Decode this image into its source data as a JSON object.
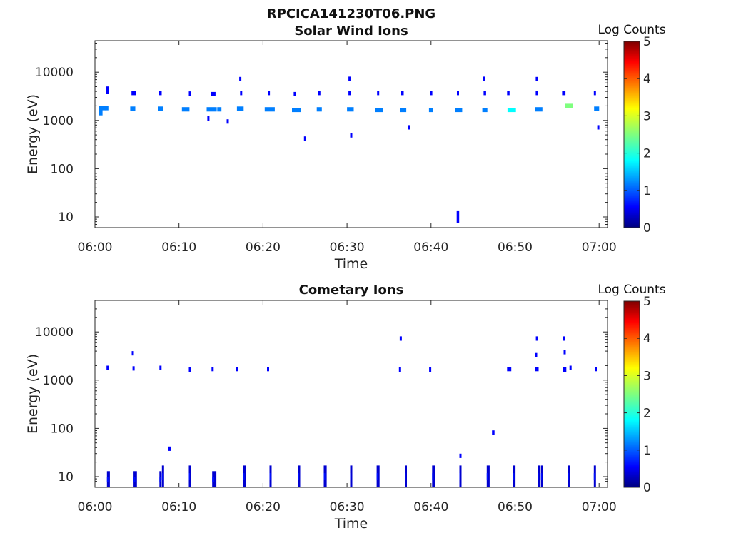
{
  "figure": {
    "title": "RPCICA141230T06.PNG"
  },
  "colorscale": [
    "#00007f",
    "#0000ff",
    "#007fff",
    "#00ffff",
    "#7fff7f",
    "#ffff00",
    "#ff7f00",
    "#ff0000",
    "#7f0000"
  ],
  "chart_data": [
    {
      "type": "heatmap",
      "title": "Solar Wind Ions",
      "xlabel": "Time",
      "ylabel": "Energy (eV)",
      "x_ticks": [
        "06:00",
        "06:10",
        "06:20",
        "06:30",
        "06:40",
        "06:50",
        "07:00"
      ],
      "x_range_minutes": [
        0,
        61
      ],
      "y_scale": "log",
      "y_range_eV": [
        6,
        45000
      ],
      "y_ticks": [
        {
          "value": 10,
          "label": "10"
        },
        {
          "value": 100,
          "label": "100"
        },
        {
          "value": 1000,
          "label": "1000"
        },
        {
          "value": 10000,
          "label": "10000"
        }
      ],
      "colorbar": {
        "label": "Log Counts",
        "range": [
          0,
          5
        ],
        "ticks": [
          "0",
          "1",
          "2",
          "3",
          "4",
          "5"
        ]
      },
      "points": [
        {
          "t": 0.7,
          "e": 1600,
          "w": 0.4,
          "v": 1.0,
          "h": 0.1
        },
        {
          "t": 1.0,
          "e": 1800,
          "w": 0.5,
          "v": 1.2
        },
        {
          "t": 1.4,
          "e": 1800,
          "w": 0.4,
          "v": 1.0
        },
        {
          "t": 1.5,
          "e": 4200,
          "w": 0.3,
          "v": 0.9,
          "h": 0.08
        },
        {
          "t": 4.5,
          "e": 1750,
          "w": 0.6,
          "v": 1.3
        },
        {
          "t": 4.6,
          "e": 3700,
          "w": 0.5,
          "v": 0.8
        },
        {
          "t": 7.8,
          "e": 1750,
          "w": 0.6,
          "v": 1.2
        },
        {
          "t": 7.8,
          "e": 3700,
          "w": 0.3,
          "v": 0.8
        },
        {
          "t": 10.8,
          "e": 1700,
          "w": 0.9,
          "v": 1.1
        },
        {
          "t": 11.3,
          "e": 3600,
          "w": 0.2,
          "v": 0.8
        },
        {
          "t": 13.5,
          "e": 1100,
          "w": 0.2,
          "v": 0.8
        },
        {
          "t": 13.9,
          "e": 1700,
          "w": 1.2,
          "v": 1.5
        },
        {
          "t": 14.1,
          "e": 3500,
          "w": 0.5,
          "v": 0.9
        },
        {
          "t": 14.8,
          "e": 1700,
          "w": 0.5,
          "v": 1.0
        },
        {
          "t": 15.8,
          "e": 950,
          "w": 0.2,
          "v": 0.7
        },
        {
          "t": 17.3,
          "e": 7200,
          "w": 0.2,
          "v": 0.8
        },
        {
          "t": 17.4,
          "e": 3700,
          "w": 0.2,
          "v": 0.8
        },
        {
          "t": 17.3,
          "e": 1750,
          "w": 0.8,
          "v": 1.2
        },
        {
          "t": 20.7,
          "e": 3700,
          "w": 0.2,
          "v": 0.8
        },
        {
          "t": 20.8,
          "e": 1700,
          "w": 1.2,
          "v": 1.4
        },
        {
          "t": 23.8,
          "e": 3500,
          "w": 0.3,
          "v": 0.8
        },
        {
          "t": 24.0,
          "e": 1650,
          "w": 1.1,
          "v": 1.5
        },
        {
          "t": 25.0,
          "e": 420,
          "w": 0.2,
          "v": 0.7
        },
        {
          "t": 26.7,
          "e": 3700,
          "w": 0.2,
          "v": 0.8
        },
        {
          "t": 26.7,
          "e": 1700,
          "w": 0.6,
          "v": 1.1
        },
        {
          "t": 30.3,
          "e": 7300,
          "w": 0.2,
          "v": 0.8
        },
        {
          "t": 30.3,
          "e": 3700,
          "w": 0.2,
          "v": 0.8
        },
        {
          "t": 30.4,
          "e": 1700,
          "w": 0.8,
          "v": 1.5
        },
        {
          "t": 30.5,
          "e": 490,
          "w": 0.2,
          "v": 0.7
        },
        {
          "t": 33.7,
          "e": 3700,
          "w": 0.2,
          "v": 0.8
        },
        {
          "t": 33.8,
          "e": 1650,
          "w": 0.9,
          "v": 1.4
        },
        {
          "t": 36.6,
          "e": 3700,
          "w": 0.3,
          "v": 0.9
        },
        {
          "t": 36.7,
          "e": 1650,
          "w": 0.7,
          "v": 1.1
        },
        {
          "t": 37.4,
          "e": 720,
          "w": 0.2,
          "v": 0.7
        },
        {
          "t": 40.0,
          "e": 3700,
          "w": 0.3,
          "v": 0.9
        },
        {
          "t": 40.0,
          "e": 1650,
          "w": 0.5,
          "v": 1.2
        },
        {
          "t": 43.2,
          "e": 3700,
          "w": 0.2,
          "v": 0.8
        },
        {
          "t": 43.3,
          "e": 1650,
          "w": 0.8,
          "v": 1.5
        },
        {
          "t": 43.2,
          "e": 10,
          "w": 0.3,
          "v": 0.8,
          "h": 0.12
        },
        {
          "t": 46.3,
          "e": 7300,
          "w": 0.2,
          "v": 0.8
        },
        {
          "t": 46.4,
          "e": 3700,
          "w": 0.3,
          "v": 0.8
        },
        {
          "t": 46.4,
          "e": 1650,
          "w": 0.6,
          "v": 1.4
        },
        {
          "t": 49.2,
          "e": 3700,
          "w": 0.3,
          "v": 0.8
        },
        {
          "t": 49.6,
          "e": 1650,
          "w": 1.0,
          "v": 1.7
        },
        {
          "t": 52.6,
          "e": 7200,
          "w": 0.3,
          "v": 0.8
        },
        {
          "t": 52.6,
          "e": 3700,
          "w": 0.3,
          "v": 0.8
        },
        {
          "t": 52.8,
          "e": 1700,
          "w": 0.9,
          "v": 1.3
        },
        {
          "t": 55.8,
          "e": 3700,
          "w": 0.4,
          "v": 0.9
        },
        {
          "t": 56.4,
          "e": 2000,
          "w": 0.9,
          "v": 2.2
        },
        {
          "t": 59.5,
          "e": 3700,
          "w": 0.2,
          "v": 0.8
        },
        {
          "t": 59.7,
          "e": 1750,
          "w": 0.6,
          "v": 1.4
        },
        {
          "t": 59.9,
          "e": 720,
          "w": 0.2,
          "v": 0.7
        }
      ]
    },
    {
      "type": "heatmap",
      "title": "Cometary Ions",
      "xlabel": "Time",
      "ylabel": "Energy (eV)",
      "x_ticks": [
        "06:00",
        "06:10",
        "06:20",
        "06:30",
        "06:40",
        "06:50",
        "07:00"
      ],
      "x_range_minutes": [
        0,
        61
      ],
      "y_scale": "log",
      "y_range_eV": [
        6,
        45000
      ],
      "y_ticks": [
        {
          "value": 10,
          "label": "10"
        },
        {
          "value": 100,
          "label": "100"
        },
        {
          "value": 1000,
          "label": "1000"
        },
        {
          "value": 10000,
          "label": "10000"
        }
      ],
      "colorbar": {
        "label": "Log Counts",
        "range": [
          0,
          5
        ],
        "ticks": [
          "0",
          "1",
          "2",
          "3",
          "4",
          "5"
        ]
      },
      "points": [
        {
          "t": 1.5,
          "e": 1800,
          "w": 0.2,
          "v": 0.8
        },
        {
          "t": 4.5,
          "e": 3600,
          "w": 0.2,
          "v": 0.8
        },
        {
          "t": 4.6,
          "e": 1750,
          "w": 0.2,
          "v": 0.8
        },
        {
          "t": 7.8,
          "e": 1800,
          "w": 0.2,
          "v": 0.8
        },
        {
          "t": 8.9,
          "e": 38,
          "w": 0.3,
          "v": 0.8
        },
        {
          "t": 11.3,
          "e": 1650,
          "w": 0.2,
          "v": 0.8
        },
        {
          "t": 14.0,
          "e": 1700,
          "w": 0.2,
          "v": 0.8
        },
        {
          "t": 16.9,
          "e": 1700,
          "w": 0.2,
          "v": 0.8
        },
        {
          "t": 20.6,
          "e": 1700,
          "w": 0.2,
          "v": 0.8
        },
        {
          "t": 36.4,
          "e": 7300,
          "w": 0.2,
          "v": 0.8
        },
        {
          "t": 36.3,
          "e": 1650,
          "w": 0.2,
          "v": 0.8
        },
        {
          "t": 39.9,
          "e": 1650,
          "w": 0.2,
          "v": 0.8
        },
        {
          "t": 43.5,
          "e": 27,
          "w": 0.2,
          "v": 0.8
        },
        {
          "t": 47.4,
          "e": 82,
          "w": 0.3,
          "v": 0.8
        },
        {
          "t": 49.3,
          "e": 1700,
          "w": 0.5,
          "v": 0.8
        },
        {
          "t": 52.6,
          "e": 7300,
          "w": 0.2,
          "v": 0.8
        },
        {
          "t": 52.5,
          "e": 3300,
          "w": 0.2,
          "v": 0.8
        },
        {
          "t": 52.6,
          "e": 1700,
          "w": 0.4,
          "v": 0.8
        },
        {
          "t": 55.8,
          "e": 7300,
          "w": 0.2,
          "v": 0.8
        },
        {
          "t": 55.9,
          "e": 3800,
          "w": 0.2,
          "v": 0.8
        },
        {
          "t": 55.9,
          "e": 1650,
          "w": 0.4,
          "v": 0.9
        },
        {
          "t": 56.6,
          "e": 1800,
          "w": 0.2,
          "v": 0.8
        },
        {
          "t": 59.6,
          "e": 1700,
          "w": 0.2,
          "v": 0.8
        }
      ],
      "bars": [
        {
          "t": 1.6,
          "w": 0.35,
          "top": 13
        },
        {
          "t": 4.8,
          "w": 0.4,
          "top": 13
        },
        {
          "t": 7.8,
          "w": 0.2,
          "top": 13
        },
        {
          "t": 8.1,
          "w": 0.2,
          "top": 17
        },
        {
          "t": 11.3,
          "w": 0.25,
          "top": 17
        },
        {
          "t": 14.2,
          "w": 0.5,
          "top": 13
        },
        {
          "t": 17.8,
          "w": 0.35,
          "top": 17
        },
        {
          "t": 20.9,
          "w": 0.25,
          "top": 17
        },
        {
          "t": 24.3,
          "w": 0.25,
          "top": 17
        },
        {
          "t": 27.4,
          "w": 0.35,
          "top": 17
        },
        {
          "t": 30.5,
          "w": 0.25,
          "top": 17
        },
        {
          "t": 33.7,
          "w": 0.35,
          "top": 17
        },
        {
          "t": 37.0,
          "w": 0.25,
          "top": 17
        },
        {
          "t": 40.3,
          "w": 0.35,
          "top": 17
        },
        {
          "t": 43.5,
          "w": 0.25,
          "top": 17
        },
        {
          "t": 46.8,
          "w": 0.35,
          "top": 17
        },
        {
          "t": 49.9,
          "w": 0.3,
          "top": 17
        },
        {
          "t": 52.8,
          "w": 0.2,
          "top": 17
        },
        {
          "t": 53.2,
          "w": 0.2,
          "top": 17
        },
        {
          "t": 56.4,
          "w": 0.25,
          "top": 17
        },
        {
          "t": 59.5,
          "w": 0.25,
          "top": 17
        }
      ]
    }
  ]
}
